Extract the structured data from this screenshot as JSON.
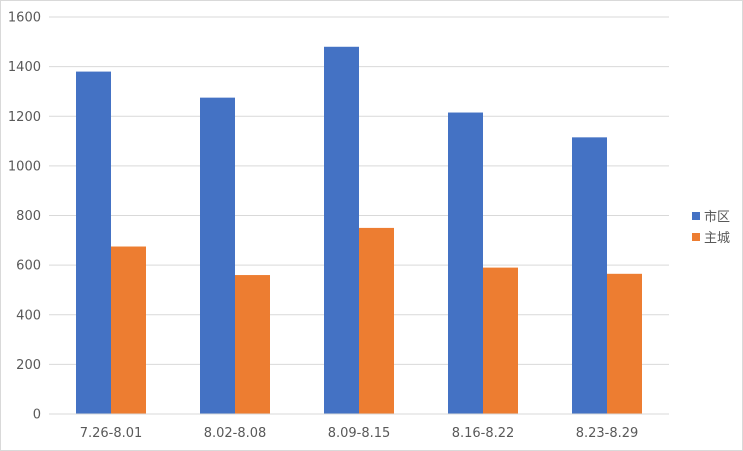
{
  "chart_data": {
    "type": "bar",
    "categories": [
      "7.26-8.01",
      "8.02-8.08",
      "8.09-8.15",
      "8.16-8.22",
      "8.23-8.29"
    ],
    "series": [
      {
        "name": "市区",
        "values": [
          1380,
          1275,
          1480,
          1215,
          1115
        ],
        "color": "#4472C4"
      },
      {
        "name": "主城",
        "values": [
          675,
          560,
          750,
          590,
          565
        ],
        "color": "#ED7D31"
      }
    ],
    "ylim": [
      0,
      1600
    ],
    "yticks": [
      0,
      200,
      400,
      600,
      800,
      1000,
      1200,
      1400,
      1600
    ],
    "grid": true,
    "legend_position": "right"
  }
}
